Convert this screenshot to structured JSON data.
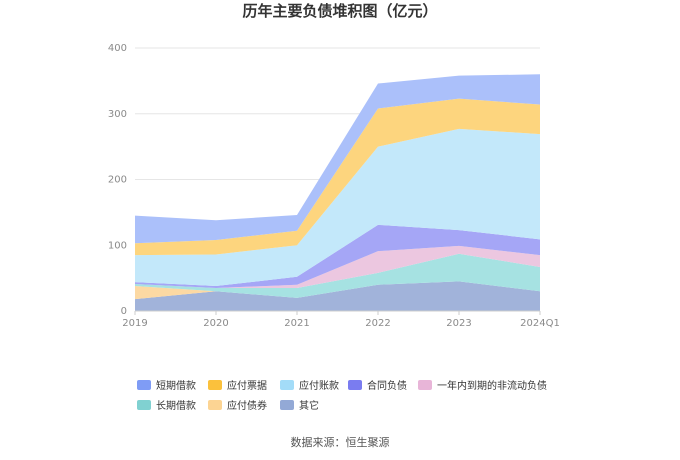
{
  "chart_data": {
    "type": "area",
    "stacked": true,
    "title": "历年主要负债堆积图（亿元）",
    "categories": [
      "2019",
      "2020",
      "2021",
      "2022",
      "2023",
      "2024Q1"
    ],
    "ylim": [
      0,
      400
    ],
    "yticks": [
      0,
      100,
      200,
      300,
      400
    ],
    "grid": true,
    "legend_position": "bottom",
    "series": [
      {
        "name": "其它",
        "color": "#a1b3da",
        "values": [
          18,
          30,
          20,
          40,
          45,
          30
        ]
      },
      {
        "name": "应付债券",
        "color": "#fcd9a3",
        "values": [
          20,
          0,
          0,
          0,
          0,
          0
        ]
      },
      {
        "name": "长期借款",
        "color": "#a6e2e2",
        "values": [
          3,
          5,
          15,
          18,
          42,
          37
        ]
      },
      {
        "name": "一年内到期的非流动负债",
        "color": "#ecc7e0",
        "values": [
          0,
          0,
          5,
          33,
          12,
          18
        ]
      },
      {
        "name": "合同负债",
        "color": "#a5a6f6",
        "values": [
          3,
          3,
          12,
          40,
          24,
          24
        ]
      },
      {
        "name": "应付账款",
        "color": "#c3e8fa",
        "values": [
          41,
          48,
          48,
          119,
          154,
          160
        ]
      },
      {
        "name": "应付票据",
        "color": "#fdd57e",
        "values": [
          18,
          22,
          22,
          58,
          46,
          45
        ]
      },
      {
        "name": "短期借款",
        "color": "#abc0fa",
        "values": [
          42,
          30,
          24,
          38,
          35,
          46
        ]
      }
    ],
    "legend": [
      {
        "name": "短期借款",
        "color": "#7f9cf5"
      },
      {
        "name": "应付票据",
        "color": "#fbc13c"
      },
      {
        "name": "应付账款",
        "color": "#a3dcf8"
      },
      {
        "name": "合同负债",
        "color": "#7a7cf0"
      },
      {
        "name": "一年内到期的非流动负债",
        "color": "#e8b5d8"
      },
      {
        "name": "长期借款",
        "color": "#80d1d1"
      },
      {
        "name": "应付债券",
        "color": "#fcd493"
      },
      {
        "name": "其它",
        "color": "#93a9d6"
      }
    ]
  },
  "source": "数据来源：恒生聚源"
}
